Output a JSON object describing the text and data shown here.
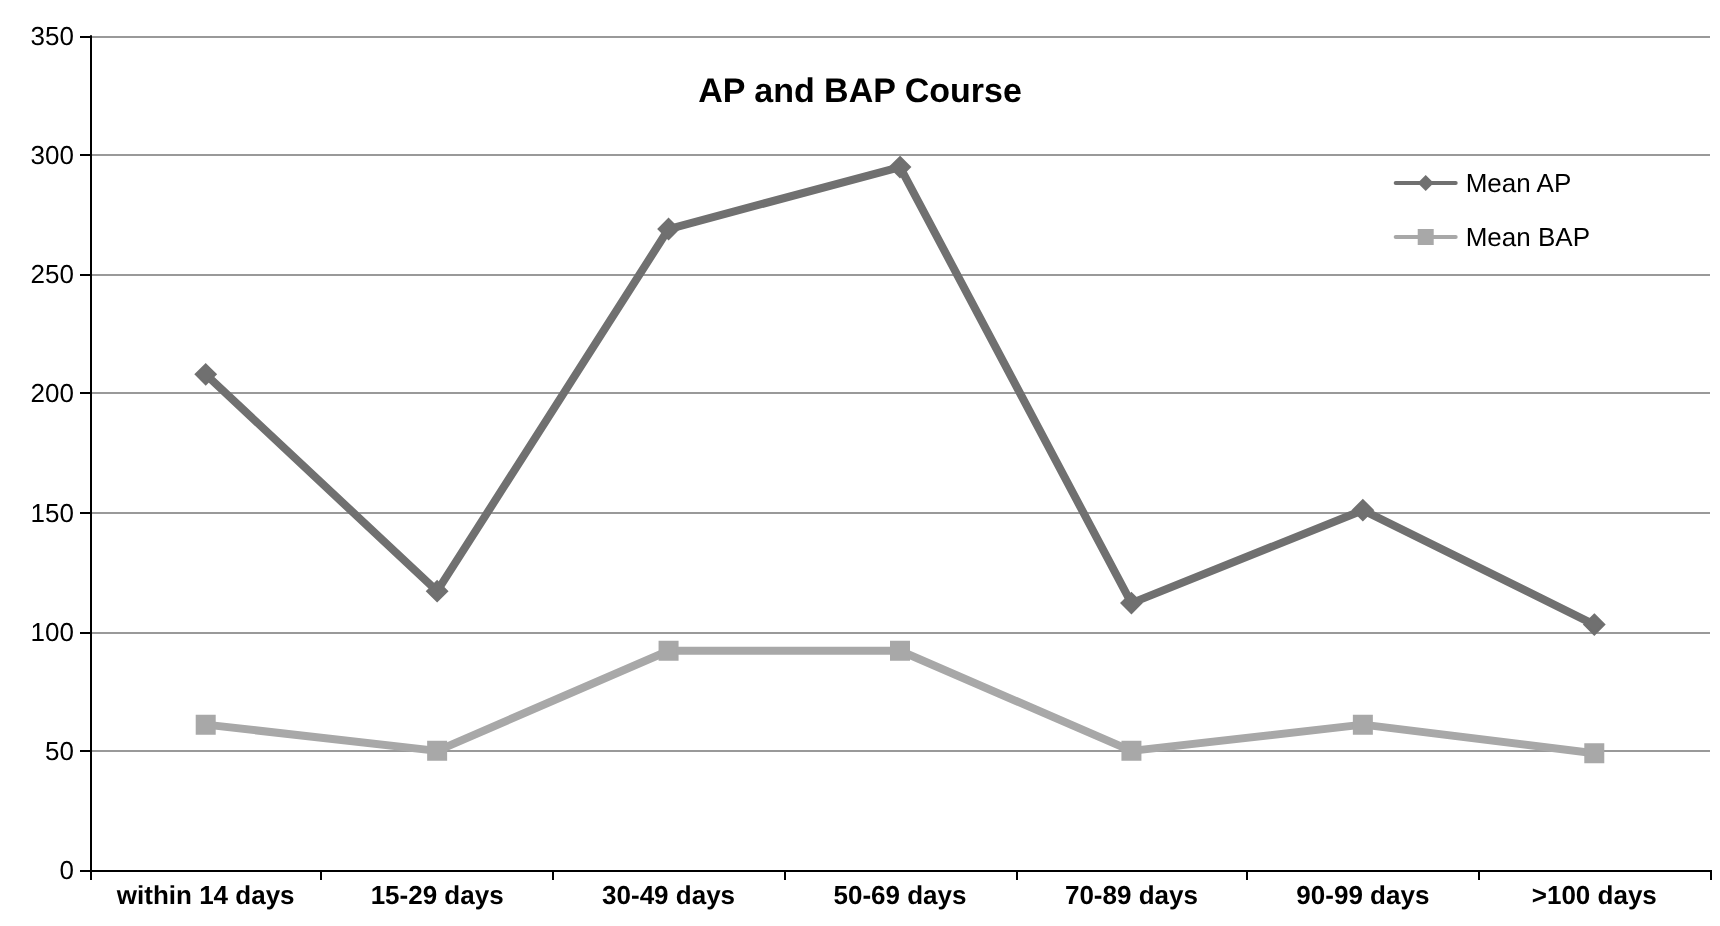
{
  "chart_data": {
    "type": "line",
    "title": "AP and BAP Course",
    "categories": [
      "within 14 days",
      "15-29 days",
      "30-49 days",
      "50-69 days",
      "70-89 days",
      "90-99 days",
      ">100 days"
    ],
    "series": [
      {
        "name": "Mean AP",
        "color": "#707070",
        "marker": "diamond",
        "values": [
          208,
          117,
          269,
          295,
          112,
          151,
          103
        ]
      },
      {
        "name": "Mean BAP",
        "color": "#a8a8a8",
        "marker": "square",
        "values": [
          61,
          50,
          92,
          92,
          50,
          61,
          49
        ]
      }
    ],
    "ylim": [
      0,
      350
    ],
    "yticks": [
      0,
      50,
      100,
      150,
      200,
      250,
      300,
      350
    ],
    "grid": "y",
    "legend": "top right",
    "line_style": "solid"
  }
}
